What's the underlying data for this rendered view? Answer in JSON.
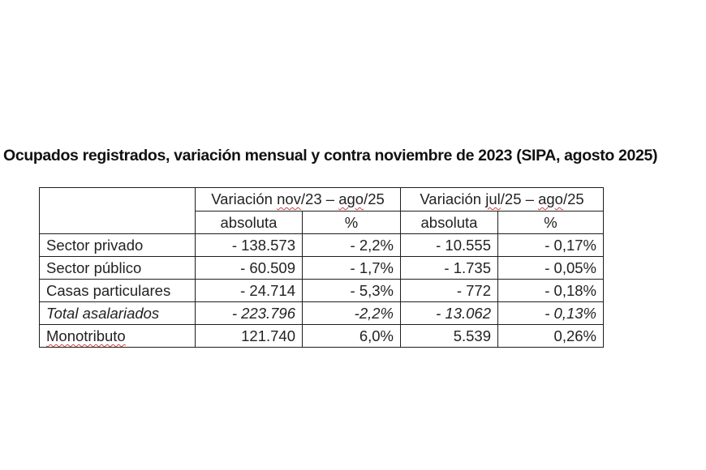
{
  "title": "Ocupados registrados, variación mensual y contra noviembre de 2023 (SIPA, agosto 2025)",
  "table": {
    "group_headers": [
      {
        "prefix": "Variación ",
        "from": "nov",
        "mid1": "/23 – ",
        "to": "ago",
        "suffix": "/25"
      },
      {
        "prefix": "Variación ",
        "from": "jul",
        "mid1": "/25 – ",
        "to": "ago",
        "suffix": "/25"
      }
    ],
    "sub_headers": [
      "absoluta",
      "%",
      "absoluta",
      "%"
    ],
    "rows": [
      {
        "label": "Sector privado",
        "abs_nov23": "- 138.573",
        "pct_nov23": "- 2,2%",
        "abs_jul25": "- 10.555",
        "pct_jul25": "- 0,17%",
        "italic": false
      },
      {
        "label": "Sector público",
        "abs_nov23": "- 60.509",
        "pct_nov23": "- 1,7%",
        "abs_jul25": "- 1.735",
        "pct_jul25": "- 0,05%",
        "italic": false
      },
      {
        "label": "Casas particulares",
        "abs_nov23": "- 24.714",
        "pct_nov23": "- 5,3%",
        "abs_jul25": "- 772",
        "pct_jul25": "- 0,18%",
        "italic": false
      },
      {
        "label": "Total asalariados",
        "abs_nov23": "- 223.796",
        "pct_nov23": "-2,2%",
        "abs_jul25": "- 13.062",
        "pct_jul25": "- 0,13%",
        "italic": true
      },
      {
        "label": "Monotributo",
        "abs_nov23": "121.740",
        "pct_nov23": "6,0%",
        "abs_jul25": "5.539",
        "pct_jul25": "0,26%",
        "italic": false
      }
    ]
  }
}
